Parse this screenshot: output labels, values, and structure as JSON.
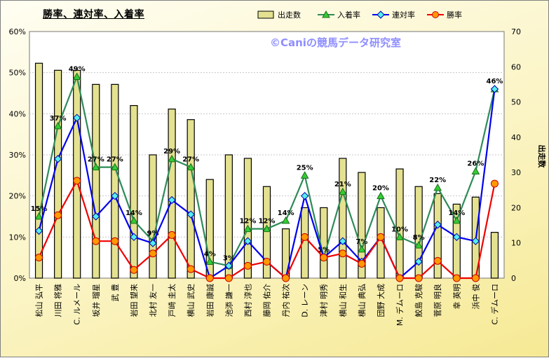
{
  "chart_data": {
    "type": "bar+line",
    "title": "勝率、連対率、入着率",
    "watermark": "©Caniの競馬データ研究室",
    "categories": [
      "松山 弘平",
      "川田 将雅",
      "C. ルメール",
      "坂井 瑠星",
      "武 豊",
      "岩田 望来",
      "北村 友一",
      "戸崎 圭太",
      "横山 武史",
      "岩田 康誠",
      "池添 謙一",
      "西村 淳也",
      "藤岡 佑介",
      "丹内 祐次",
      "D. レーン",
      "津村 明秀",
      "横山 和生",
      "横山 典弘",
      "団野 大成",
      "M. デムーロ",
      "鮫島 克駿",
      "菅原 明良",
      "幸 英明",
      "浜中 俊",
      "C. デムーロ"
    ],
    "legend": [
      "出走数",
      "入着率",
      "連対率",
      "勝率"
    ],
    "legend_position": "top",
    "y_left": {
      "min": 0,
      "max": 60,
      "ticks": [
        "0%",
        "10%",
        "20%",
        "30%",
        "40%",
        "50%",
        "60%"
      ]
    },
    "y_right": {
      "min": 0,
      "max": 70,
      "ticks": [
        "0",
        "10",
        "20",
        "30",
        "40",
        "50",
        "60",
        "70"
      ],
      "label": "出走数"
    },
    "series": [
      {
        "name": "出走数",
        "kind": "bar",
        "axis": "right",
        "color": "#e4e190",
        "values": [
          61,
          59,
          59,
          55,
          55,
          49,
          35,
          48,
          45,
          28,
          35,
          34,
          26,
          14,
          20,
          20,
          34,
          30,
          20,
          31,
          26,
          24,
          21,
          23,
          13
        ]
      },
      {
        "name": "入着率",
        "kind": "line",
        "axis": "left",
        "color": "#2e8b57",
        "marker": "triangle",
        "values": [
          15,
          37,
          49,
          27,
          27,
          14,
          9,
          29,
          27,
          4,
          3,
          12,
          12,
          14,
          25,
          5,
          21,
          7,
          20,
          10,
          8,
          22,
          14,
          26,
          46
        ],
        "labels": [
          "15%",
          "37%",
          "49%",
          "27%",
          "27%",
          "14%",
          "9%",
          "29%",
          "27%",
          "4%",
          "3%",
          "12%",
          "12%",
          "14%",
          "25%",
          "5%",
          "21%",
          "7%",
          "20%",
          "10%",
          "8%",
          "22%",
          "14%",
          "26%",
          "46%"
        ]
      },
      {
        "name": "連対率",
        "kind": "line",
        "axis": "left",
        "color": "#0000ee",
        "marker": "diamond",
        "values": [
          11.5,
          29,
          39,
          15,
          20,
          10,
          8.5,
          19,
          15.5,
          0,
          3,
          9,
          4,
          0,
          20,
          5,
          9,
          4,
          10,
          0,
          4,
          13,
          10,
          9,
          46
        ]
      },
      {
        "name": "勝率",
        "kind": "line",
        "axis": "left",
        "color": "#ee0000",
        "marker": "circle",
        "values": [
          5,
          15.3,
          23.7,
          9,
          9,
          2,
          6,
          10.5,
          2.2,
          0,
          0,
          3,
          4,
          0,
          10,
          5,
          6,
          3.5,
          10,
          0,
          0,
          4.2,
          0,
          0,
          23
        ]
      }
    ]
  }
}
